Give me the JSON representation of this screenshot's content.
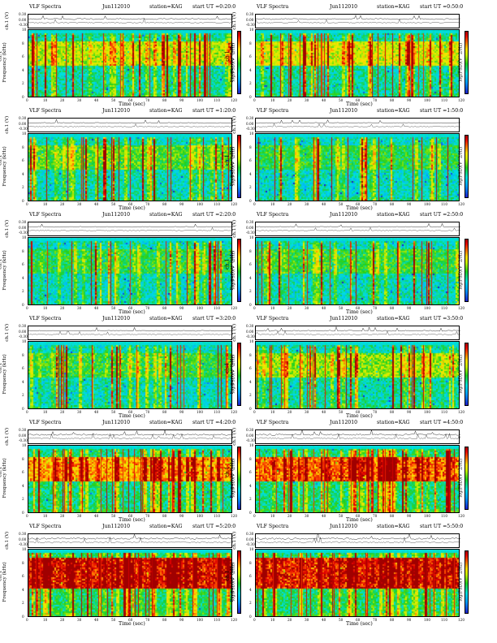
{
  "app": {
    "title": "VLF Spectra",
    "date": "Jun112010",
    "station": "station=KAG",
    "start_prefix": "start UT ="
  },
  "labels": {
    "ch1_axis": "ch.1 (V)",
    "ch1_name": "ch.1",
    "freq_axis": "Frequency (kHz)",
    "time_axis": "Time (sec)",
    "cbar_axis": "log(PSD)(V^2/Hz)"
  },
  "ticks": {
    "time": [
      "0",
      "10",
      "20",
      "30",
      "40",
      "50",
      "60",
      "70",
      "80",
      "90",
      "100",
      "110",
      "120"
    ],
    "freq": [
      "10",
      "8",
      "6",
      "4",
      "2",
      "0"
    ],
    "ch1": [
      "0.30",
      "0.00",
      "-0.30"
    ]
  },
  "colors": {
    "low": "#1e1ec8",
    "mid": "#20d020",
    "high": "#e00000",
    "trace": "#000000"
  },
  "chart_data": [
    {
      "type": "heatmap",
      "title": "VLF Spectra",
      "start_ut": "0:20:0",
      "xlabel": "Time (sec)",
      "ylabel": "Frequency (kHz)",
      "xlim": [
        0,
        120
      ],
      "ylim": [
        0,
        10
      ],
      "ch1_ylim": [
        -0.3,
        0.3
      ],
      "activity": 0.45,
      "band_khz": [
        5,
        8.5
      ]
    },
    {
      "type": "heatmap",
      "title": "VLF Spectra",
      "start_ut": "0:50:0",
      "xlabel": "Time (sec)",
      "ylabel": "Frequency (kHz)",
      "xlim": [
        0,
        120
      ],
      "ylim": [
        0,
        10
      ],
      "ch1_ylim": [
        -0.3,
        0.3
      ],
      "activity": 0.5,
      "band_khz": [
        5,
        8.5
      ]
    },
    {
      "type": "heatmap",
      "title": "VLF Spectra",
      "start_ut": "1:20:0",
      "xlabel": "Time (sec)",
      "ylabel": "Frequency (kHz)",
      "xlim": [
        0,
        120
      ],
      "ylim": [
        0,
        10
      ],
      "ch1_ylim": [
        -0.3,
        0.3
      ],
      "activity": 0.3,
      "band_khz": [
        5,
        8.5
      ]
    },
    {
      "type": "heatmap",
      "title": "VLF Spectra",
      "start_ut": "1:50:0",
      "xlabel": "Time (sec)",
      "ylabel": "Frequency (kHz)",
      "xlim": [
        0,
        120
      ],
      "ylim": [
        0,
        10
      ],
      "ch1_ylim": [
        -0.3,
        0.3
      ],
      "activity": 0.22,
      "band_khz": [
        5,
        8.5
      ]
    },
    {
      "type": "heatmap",
      "title": "VLF Spectra",
      "start_ut": "2:20:0",
      "xlabel": "Time (sec)",
      "ylabel": "Frequency (kHz)",
      "xlim": [
        0,
        120
      ],
      "ylim": [
        0,
        10
      ],
      "ch1_ylim": [
        -0.3,
        0.3
      ],
      "activity": 0.22,
      "band_khz": [
        5,
        8.5
      ]
    },
    {
      "type": "heatmap",
      "title": "VLF Spectra",
      "start_ut": "2:50:0",
      "xlabel": "Time (sec)",
      "ylabel": "Frequency (kHz)",
      "xlim": [
        0,
        120
      ],
      "ylim": [
        0,
        10
      ],
      "ch1_ylim": [
        -0.3,
        0.3
      ],
      "activity": 0.25,
      "band_khz": [
        5,
        8.5
      ]
    },
    {
      "type": "heatmap",
      "title": "VLF Spectra",
      "start_ut": "3:20:0",
      "xlabel": "Time (sec)",
      "ylabel": "Frequency (kHz)",
      "xlim": [
        0,
        120
      ],
      "ylim": [
        0,
        10
      ],
      "ch1_ylim": [
        -0.3,
        0.3
      ],
      "activity": 0.25,
      "band_khz": [
        5,
        8.5
      ]
    },
    {
      "type": "heatmap",
      "title": "VLF Spectra",
      "start_ut": "3:50:0",
      "xlabel": "Time (sec)",
      "ylabel": "Frequency (kHz)",
      "xlim": [
        0,
        120
      ],
      "ylim": [
        0,
        10
      ],
      "ch1_ylim": [
        -0.3,
        0.3
      ],
      "activity": 0.4,
      "band_khz": [
        5,
        8.5
      ]
    },
    {
      "type": "heatmap",
      "title": "VLF Spectra",
      "start_ut": "4:20:0",
      "xlabel": "Time (sec)",
      "ylabel": "Frequency (kHz)",
      "xlim": [
        0,
        120
      ],
      "ylim": [
        0,
        10
      ],
      "ch1_ylim": [
        -0.3,
        0.3
      ],
      "activity": 0.7,
      "band_khz": [
        5,
        8.5
      ]
    },
    {
      "type": "heatmap",
      "title": "VLF Spectra",
      "start_ut": "4:50:0",
      "xlabel": "Time (sec)",
      "ylabel": "Frequency (kHz)",
      "xlim": [
        0,
        120
      ],
      "ylim": [
        0,
        10
      ],
      "ch1_ylim": [
        -0.3,
        0.3
      ],
      "activity": 0.78,
      "band_khz": [
        5,
        8.5
      ]
    },
    {
      "type": "heatmap",
      "title": "VLF Spectra",
      "start_ut": "5:20:0",
      "xlabel": "Time (sec)",
      "ylabel": "Frequency (kHz)",
      "xlim": [
        0,
        120
      ],
      "ylim": [
        0,
        10
      ],
      "ch1_ylim": [
        -0.3,
        0.3
      ],
      "activity": 0.92,
      "band_khz": [
        4.5,
        9
      ]
    },
    {
      "type": "heatmap",
      "title": "VLF Spectra",
      "start_ut": "5:50:0",
      "xlabel": "Time (sec)",
      "ylabel": "Frequency (kHz)",
      "xlim": [
        0,
        120
      ],
      "ylim": [
        0,
        10
      ],
      "ch1_ylim": [
        -0.3,
        0.3
      ],
      "activity": 0.9,
      "band_khz": [
        4.5,
        9
      ]
    }
  ]
}
